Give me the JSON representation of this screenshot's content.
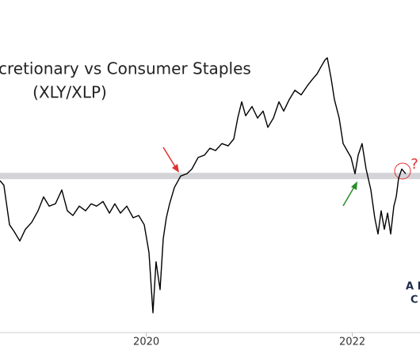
{
  "chart_data": {
    "type": "line",
    "title": "cretionary vs Consumer Staples",
    "subtitle": "(XLY/XLP)",
    "annotations": [
      "?",
      "A L",
      "C"
    ],
    "xlim": [
      2018.58,
      2022.657
    ],
    "xticks": [
      2020,
      2022
    ],
    "reference_level": 2.34,
    "series": [
      {
        "color": "#000000",
        "x": [
          2018.58,
          2018.618,
          2018.672,
          2018.718,
          2018.772,
          2018.826,
          2018.888,
          2018.949,
          2019.003,
          2019.057,
          2019.118,
          2019.18,
          2019.234,
          2019.288,
          2019.349,
          2019.411,
          2019.465,
          2019.518,
          2019.58,
          2019.642,
          2019.695,
          2019.749,
          2019.811,
          2019.872,
          2019.926,
          2019.98,
          2020.026,
          2020.065,
          2020.095,
          2020.134,
          2020.165,
          2020.195,
          2020.226,
          2020.272,
          2020.334,
          2020.395,
          2020.442,
          2020.503,
          2020.565,
          2020.618,
          2020.672,
          2020.734,
          2020.795,
          2020.849,
          2020.888,
          2020.926,
          2020.965,
          2021.026,
          2021.08,
          2021.134,
          2021.18,
          2021.234,
          2021.288,
          2021.334,
          2021.388,
          2021.442,
          2021.503,
          2021.565,
          2021.618,
          2021.657,
          2021.695,
          2021.734,
          2021.757,
          2021.795,
          2021.826,
          2021.872,
          2021.911,
          2021.949,
          2021.988,
          2022.026,
          2022.057,
          2022.095,
          2022.134,
          2022.18,
          2022.218,
          2022.249,
          2022.28,
          2022.311,
          2022.342,
          2022.372,
          2022.403,
          2022.426,
          2022.449,
          2022.48,
          2022.518
        ],
        "values": [
          2.32,
          2.3,
          2.13,
          2.1,
          2.06,
          2.11,
          2.14,
          2.19,
          2.25,
          2.21,
          2.22,
          2.28,
          2.19,
          2.17,
          2.21,
          2.19,
          2.22,
          2.21,
          2.23,
          2.18,
          2.22,
          2.18,
          2.21,
          2.16,
          2.17,
          2.13,
          2.01,
          1.75,
          1.97,
          1.85,
          2.07,
          2.16,
          2.22,
          2.29,
          2.34,
          2.35,
          2.37,
          2.42,
          2.43,
          2.46,
          2.45,
          2.48,
          2.47,
          2.5,
          2.59,
          2.66,
          2.6,
          2.64,
          2.59,
          2.62,
          2.55,
          2.59,
          2.66,
          2.62,
          2.67,
          2.71,
          2.69,
          2.73,
          2.76,
          2.78,
          2.81,
          2.84,
          2.85,
          2.76,
          2.67,
          2.59,
          2.48,
          2.45,
          2.42,
          2.35,
          2.43,
          2.48,
          2.37,
          2.28,
          2.16,
          2.09,
          2.19,
          2.11,
          2.18,
          2.09,
          2.21,
          2.25,
          2.33,
          2.37,
          2.35
        ]
      }
    ]
  }
}
